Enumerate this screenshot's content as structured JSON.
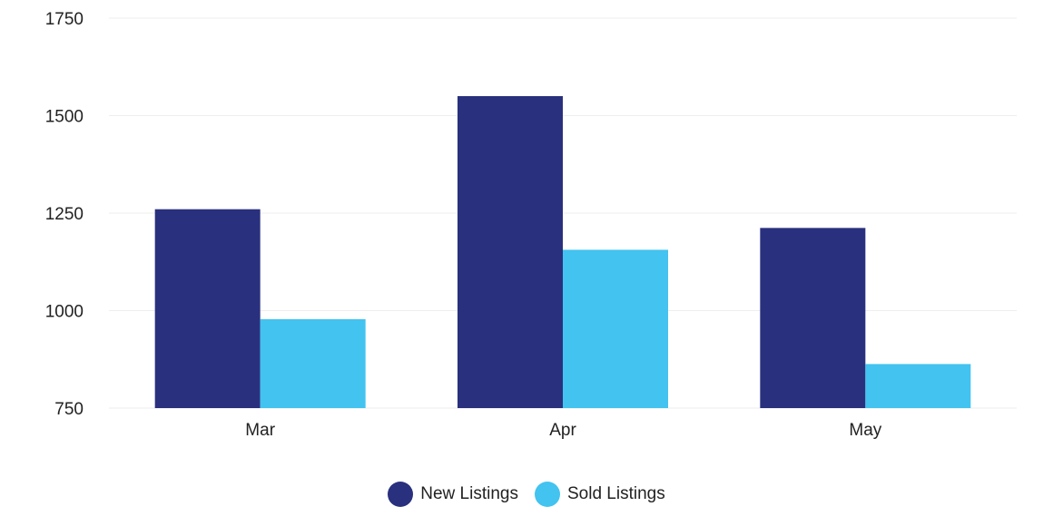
{
  "chart_data": {
    "type": "bar",
    "categories": [
      "Mar",
      "Apr",
      "May"
    ],
    "series": [
      {
        "name": "New Listings",
        "values": [
          1260,
          1550,
          1212
        ],
        "color": "#29307e"
      },
      {
        "name": "Sold Listings",
        "values": [
          978,
          1156,
          863
        ],
        "color": "#42c3f0"
      }
    ],
    "ylim": [
      750,
      1750
    ],
    "y_ticks": [
      750,
      1000,
      1250,
      1500,
      1750
    ],
    "y_tick_labels": [
      "750",
      "1000",
      "1250",
      "1500",
      "1750"
    ],
    "grid": true,
    "legend_position": "bottom"
  }
}
